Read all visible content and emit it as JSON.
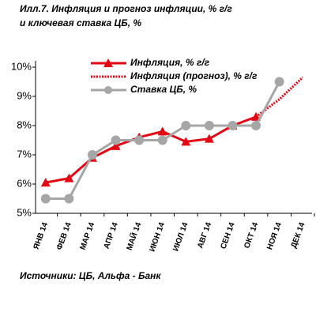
{
  "chart_data": {
    "type": "line",
    "title": [
      "Илл.7.   Инфляция и прогноз инфляции, % г/г",
      "и ключевая ставка ЦБ, %"
    ],
    "source": "Источники: ЦБ, Альфа - Банк",
    "categories": [
      "ЯНВ 14",
      "ФЕВ 14",
      "МАР 14",
      "АПР 14",
      "МАЙ 14",
      "ИЮН 14",
      "ИЮЛ 14",
      "АВГ 14",
      "СЕН 14",
      "ОКТ 14",
      "НОЯ 14",
      "ДЕК 14"
    ],
    "series": [
      {
        "name": "Инфляция, % г/г",
        "color": "#e30613",
        "marker": "triangle",
        "dashed": false,
        "values": [
          6.05,
          6.2,
          6.9,
          7.3,
          7.6,
          7.8,
          7.45,
          7.55,
          8.0,
          8.3,
          null,
          null
        ]
      },
      {
        "name": "Инфляция (прогноз), % г/г",
        "color": "#e30613",
        "marker": "none",
        "dashed": true,
        "values": [
          null,
          null,
          null,
          null,
          null,
          null,
          null,
          null,
          null,
          8.3,
          8.9,
          9.65
        ]
      },
      {
        "name": "Ставка ЦБ, %",
        "color": "#a6a6a6",
        "marker": "circle",
        "dashed": false,
        "values": [
          5.5,
          5.5,
          7.0,
          7.5,
          7.5,
          7.5,
          8.0,
          8.0,
          8.0,
          8.0,
          9.5,
          null
        ]
      }
    ],
    "ylim": [
      5,
      10
    ],
    "yticks": [
      {
        "value": 5,
        "label": "5%"
      },
      {
        "value": 6,
        "label": "6%"
      },
      {
        "value": 7,
        "label": "7%"
      },
      {
        "value": 8,
        "label": "8%"
      },
      {
        "value": 9,
        "label": "9%"
      },
      {
        "value": 10,
        "label": "10%"
      }
    ],
    "grid": false
  }
}
